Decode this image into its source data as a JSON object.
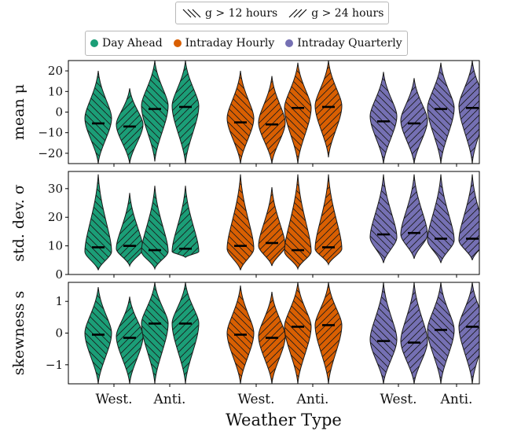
{
  "chart_data": {
    "type": "violin",
    "xlabel": "Weather Type",
    "group_tick_labels": [
      "West.",
      "Anti.",
      "West.",
      "Anti.",
      "West.",
      "Anti."
    ],
    "legend_color": [
      {
        "name": "Day Ahead",
        "color": "#1b9e77"
      },
      {
        "name": "Intraday Hourly",
        "color": "#d95f02"
      },
      {
        "name": "Intraday Quarterly",
        "color": "#7570b3"
      }
    ],
    "legend_hatch": [
      {
        "name": "g > 12 hours",
        "hatch": "backslash"
      },
      {
        "name": "g > 24 hours",
        "hatch": "slash"
      }
    ],
    "panels": [
      {
        "ylabel": "mean μ",
        "ylim": [
          -25,
          25
        ],
        "yticks": [
          -20,
          -10,
          0,
          10,
          20
        ],
        "ytick_labels": [
          "−20",
          "−10",
          "0",
          "10",
          "20"
        ],
        "series": [
          {
            "market": "Day Ahead",
            "violins": [
              {
                "weather": "West.",
                "horizon": "g > 12 hours",
                "min": -25,
                "max": 20,
                "median": -5.5,
                "mode": -3
              },
              {
                "weather": "West.",
                "horizon": "g > 24 hours",
                "min": -25,
                "max": 11.5,
                "median": -7,
                "mode": -6
              },
              {
                "weather": "Anti.",
                "horizon": "g > 12 hours",
                "min": -24,
                "max": 25,
                "median": 1.5,
                "mode": 3
              },
              {
                "weather": "Anti.",
                "horizon": "g > 24 hours",
                "min": -25,
                "max": 25,
                "median": 2.5,
                "mode": 3
              }
            ]
          },
          {
            "market": "Intraday Hourly",
            "violins": [
              {
                "weather": "West.",
                "horizon": "g > 12 hours",
                "min": -25,
                "max": 20,
                "median": -5,
                "mode": -3
              },
              {
                "weather": "West.",
                "horizon": "g > 24 hours",
                "min": -25,
                "max": 17.5,
                "median": -6,
                "mode": -5
              },
              {
                "weather": "Anti.",
                "horizon": "g > 12 hours",
                "min": -25,
                "max": 24,
                "median": 2,
                "mode": 2
              },
              {
                "weather": "Anti.",
                "horizon": "g > 24 hours",
                "min": -22,
                "max": 25,
                "median": 2.5,
                "mode": 3
              }
            ]
          },
          {
            "market": "Intraday Quarterly",
            "violins": [
              {
                "weather": "West.",
                "horizon": "g > 12 hours",
                "min": -25,
                "max": 19.5,
                "median": -4.5,
                "mode": -2
              },
              {
                "weather": "West.",
                "horizon": "g > 24 hours",
                "min": -25,
                "max": 16.5,
                "median": -5.5,
                "mode": -4
              },
              {
                "weather": "Anti.",
                "horizon": "g > 12 hours",
                "min": -25,
                "max": 24,
                "median": 1.5,
                "mode": 2
              },
              {
                "weather": "Anti.",
                "horizon": "g > 24 hours",
                "min": -25,
                "max": 25,
                "median": 2,
                "mode": 3
              }
            ]
          }
        ]
      },
      {
        "ylabel": "std. dev. σ",
        "ylim": [
          0,
          36
        ],
        "yticks": [
          0,
          10,
          20,
          30
        ],
        "ytick_labels": [
          "0",
          "10",
          "20",
          "30"
        ],
        "series": [
          {
            "market": "Day Ahead",
            "violins": [
              {
                "weather": "West.",
                "horizon": "g > 12 hours",
                "min": 1.5,
                "max": 35,
                "median": 9.5,
                "mode": 8
              },
              {
                "weather": "West.",
                "horizon": "g > 24 hours",
                "min": 3,
                "max": 28.5,
                "median": 10,
                "mode": 9
              },
              {
                "weather": "Anti.",
                "horizon": "g > 12 hours",
                "min": 2,
                "max": 31,
                "median": 8.5,
                "mode": 8
              },
              {
                "weather": "Anti.",
                "horizon": "g > 24 hours",
                "min": 6,
                "max": 31,
                "median": 9,
                "mode": 8
              }
            ]
          },
          {
            "market": "Intraday Hourly",
            "violins": [
              {
                "weather": "West.",
                "horizon": "g > 12 hours",
                "min": 1.5,
                "max": 35,
                "median": 10,
                "mode": 9
              },
              {
                "weather": "West.",
                "horizon": "g > 24 hours",
                "min": 3,
                "max": 30.5,
                "median": 11,
                "mode": 10
              },
              {
                "weather": "Anti.",
                "horizon": "g > 12 hours",
                "min": 2,
                "max": 35,
                "median": 8.5,
                "mode": 8
              },
              {
                "weather": "Anti.",
                "horizon": "g > 24 hours",
                "min": 3.5,
                "max": 35,
                "median": 9.5,
                "mode": 9
              }
            ]
          },
          {
            "market": "Intraday Quarterly",
            "violins": [
              {
                "weather": "West.",
                "horizon": "g > 12 hours",
                "min": 4,
                "max": 35,
                "median": 14,
                "mode": 13
              },
              {
                "weather": "West.",
                "horizon": "g > 24 hours",
                "min": 5.5,
                "max": 35,
                "median": 14.5,
                "mode": 14
              },
              {
                "weather": "Anti.",
                "horizon": "g > 12 hours",
                "min": 4,
                "max": 35,
                "median": 12.5,
                "mode": 12
              },
              {
                "weather": "Anti.",
                "horizon": "g > 24 hours",
                "min": 5,
                "max": 35,
                "median": 12.5,
                "mode": 12
              }
            ]
          }
        ]
      },
      {
        "ylabel": "skewness s",
        "ylim": [
          -1.6,
          1.6
        ],
        "yticks": [
          -1,
          0,
          1
        ],
        "ytick_labels": [
          "−1",
          "0",
          "1"
        ],
        "series": [
          {
            "market": "Day Ahead",
            "violins": [
              {
                "weather": "West.",
                "horizon": "g > 12 hours",
                "min": -1.6,
                "max": 1.45,
                "median": -0.05,
                "mode": 0
              },
              {
                "weather": "West.",
                "horizon": "g > 24 hours",
                "min": -1.6,
                "max": 1.15,
                "median": -0.15,
                "mode": -0.1
              },
              {
                "weather": "Anti.",
                "horizon": "g > 12 hours",
                "min": -1.6,
                "max": 1.6,
                "median": 0.3,
                "mode": 0.3
              },
              {
                "weather": "Anti.",
                "horizon": "g > 24 hours",
                "min": -1.6,
                "max": 1.6,
                "median": 0.3,
                "mode": 0.3
              }
            ]
          },
          {
            "market": "Intraday Hourly",
            "violins": [
              {
                "weather": "West.",
                "horizon": "g > 12 hours",
                "min": -1.6,
                "max": 1.5,
                "median": -0.05,
                "mode": 0
              },
              {
                "weather": "West.",
                "horizon": "g > 24 hours",
                "min": -1.6,
                "max": 1.3,
                "median": -0.15,
                "mode": -0.1
              },
              {
                "weather": "Anti.",
                "horizon": "g > 12 hours",
                "min": -1.6,
                "max": 1.6,
                "median": 0.2,
                "mode": 0.2
              },
              {
                "weather": "Anti.",
                "horizon": "g > 24 hours",
                "min": -1.6,
                "max": 1.6,
                "median": 0.25,
                "mode": 0.25
              }
            ]
          },
          {
            "market": "Intraday Quarterly",
            "violins": [
              {
                "weather": "West.",
                "horizon": "g > 12 hours",
                "min": -1.6,
                "max": 1.6,
                "median": -0.25,
                "mode": -0.2
              },
              {
                "weather": "West.",
                "horizon": "g > 24 hours",
                "min": -1.6,
                "max": 1.6,
                "median": -0.3,
                "mode": -0.25
              },
              {
                "weather": "Anti.",
                "horizon": "g > 12 hours",
                "min": -1.6,
                "max": 1.6,
                "median": 0.1,
                "mode": 0.1
              },
              {
                "weather": "Anti.",
                "horizon": "g > 24 hours",
                "min": -1.6,
                "max": 1.6,
                "median": 0.2,
                "mode": 0.2
              }
            ]
          }
        ]
      }
    ]
  }
}
